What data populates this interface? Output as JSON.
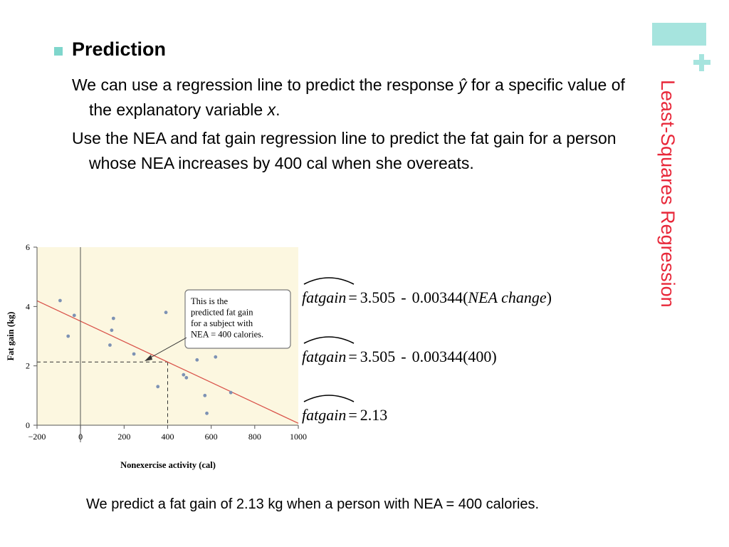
{
  "slide": {
    "side_title": "Least-Squares Regression",
    "heading": "Prediction",
    "paragraph_1": {
      "before": "We can use a regression line to predict the response ",
      "yhat": "ŷ",
      "middle": " for a specific value of the explanatory variable ",
      "x": "x",
      "after": "."
    },
    "paragraph_2": "Use the NEA and fat gain regression line to predict the fat gain for a person whose NEA increases by 400 cal when she overeats.",
    "conclusion": "We predict a fat gain of 2.13 kg when a person with NEA = 400 calories.",
    "accent_color": "#a6e4de",
    "title_color": "#e8283a"
  },
  "equations": {
    "var": "fatgain",
    "eq": "=",
    "minus": "-",
    "line1": {
      "intercept": "3.505",
      "slope": "0.00344(",
      "term": "NEA change",
      "close": ")"
    },
    "line2": {
      "intercept": "3.505",
      "slope": "0.00344(400)"
    },
    "line3": {
      "result": "2.13"
    }
  },
  "chart_data": {
    "type": "scatter",
    "xlabel": "Nonexercise activity (cal)",
    "ylabel": "Fat gain (kg)",
    "xlim": [
      -200,
      1000
    ],
    "ylim": [
      0,
      6
    ],
    "xticks": [
      -200,
      0,
      200,
      400,
      600,
      800,
      1000
    ],
    "yticks": [
      0,
      2,
      4,
      6
    ],
    "x": [
      -94,
      -57,
      -29,
      135,
      143,
      151,
      245,
      355,
      392,
      473,
      486,
      535,
      571,
      580,
      620,
      690
    ],
    "y": [
      4.2,
      3.0,
      3.7,
      2.7,
      3.2,
      3.6,
      2.4,
      1.3,
      3.8,
      1.7,
      1.6,
      2.2,
      1.0,
      0.4,
      2.3,
      1.1
    ],
    "regression_line": {
      "intercept": 3.505,
      "slope": -0.00344
    },
    "prediction": {
      "x": 400,
      "y": 2.13
    },
    "annotation": "This is the predicted fat gain for a subject with NEA = 400 calories.",
    "background_color": "#fcf7e0",
    "point_color": "#7d92b4",
    "line_color": "#d9534a"
  }
}
